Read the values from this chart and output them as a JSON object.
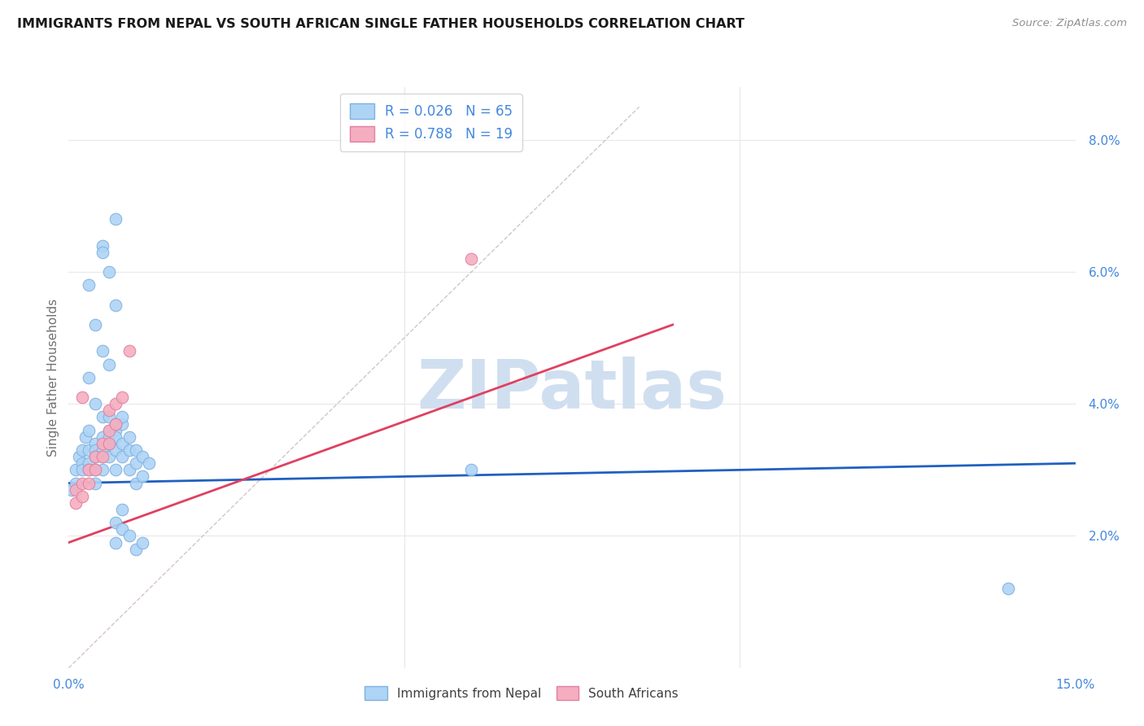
{
  "title": "IMMIGRANTS FROM NEPAL VS SOUTH AFRICAN SINGLE FATHER HOUSEHOLDS CORRELATION CHART",
  "source": "Source: ZipAtlas.com",
  "ylabel": "Single Father Households",
  "y_ticks": [
    2.0,
    4.0,
    6.0,
    8.0
  ],
  "x_min": 0.0,
  "x_max": 0.15,
  "y_min": 0.0,
  "y_max": 0.088,
  "nepal_points": [
    [
      0.0005,
      0.027
    ],
    [
      0.001,
      0.03
    ],
    [
      0.001,
      0.028
    ],
    [
      0.0015,
      0.032
    ],
    [
      0.002,
      0.031
    ],
    [
      0.002,
      0.033
    ],
    [
      0.0025,
      0.035
    ],
    [
      0.002,
      0.03
    ],
    [
      0.003,
      0.036
    ],
    [
      0.003,
      0.033
    ],
    [
      0.003,
      0.031
    ],
    [
      0.003,
      0.03
    ],
    [
      0.003,
      0.058
    ],
    [
      0.004,
      0.034
    ],
    [
      0.004,
      0.033
    ],
    [
      0.004,
      0.03
    ],
    [
      0.004,
      0.028
    ],
    [
      0.004,
      0.032
    ],
    [
      0.005,
      0.035
    ],
    [
      0.005,
      0.032
    ],
    [
      0.005,
      0.03
    ],
    [
      0.005,
      0.033
    ],
    [
      0.005,
      0.048
    ],
    [
      0.005,
      0.064
    ],
    [
      0.006,
      0.036
    ],
    [
      0.006,
      0.034
    ],
    [
      0.006,
      0.032
    ],
    [
      0.006,
      0.035
    ],
    [
      0.006,
      0.046
    ],
    [
      0.007,
      0.036
    ],
    [
      0.007,
      0.035
    ],
    [
      0.007,
      0.033
    ],
    [
      0.007,
      0.03
    ],
    [
      0.007,
      0.022
    ],
    [
      0.007,
      0.019
    ],
    [
      0.008,
      0.037
    ],
    [
      0.008,
      0.034
    ],
    [
      0.008,
      0.032
    ],
    [
      0.008,
      0.024
    ],
    [
      0.008,
      0.021
    ],
    [
      0.009,
      0.035
    ],
    [
      0.009,
      0.033
    ],
    [
      0.009,
      0.03
    ],
    [
      0.009,
      0.02
    ],
    [
      0.01,
      0.033
    ],
    [
      0.01,
      0.031
    ],
    [
      0.01,
      0.028
    ],
    [
      0.01,
      0.018
    ],
    [
      0.011,
      0.032
    ],
    [
      0.011,
      0.029
    ],
    [
      0.011,
      0.019
    ],
    [
      0.012,
      0.031
    ],
    [
      0.005,
      0.063
    ],
    [
      0.007,
      0.068
    ],
    [
      0.004,
      0.04
    ],
    [
      0.005,
      0.038
    ],
    [
      0.006,
      0.038
    ],
    [
      0.007,
      0.037
    ],
    [
      0.003,
      0.044
    ],
    [
      0.004,
      0.052
    ],
    [
      0.006,
      0.06
    ],
    [
      0.007,
      0.055
    ],
    [
      0.008,
      0.038
    ],
    [
      0.06,
      0.03
    ],
    [
      0.14,
      0.012
    ]
  ],
  "sa_points": [
    [
      0.001,
      0.027
    ],
    [
      0.001,
      0.025
    ],
    [
      0.002,
      0.028
    ],
    [
      0.002,
      0.026
    ],
    [
      0.003,
      0.03
    ],
    [
      0.003,
      0.028
    ],
    [
      0.004,
      0.032
    ],
    [
      0.004,
      0.03
    ],
    [
      0.005,
      0.034
    ],
    [
      0.005,
      0.032
    ],
    [
      0.006,
      0.036
    ],
    [
      0.006,
      0.034
    ],
    [
      0.006,
      0.039
    ],
    [
      0.007,
      0.037
    ],
    [
      0.007,
      0.04
    ],
    [
      0.008,
      0.041
    ],
    [
      0.009,
      0.048
    ],
    [
      0.002,
      0.041
    ],
    [
      0.06,
      0.062
    ]
  ],
  "nepal_line": {
    "x0": 0.0,
    "y0": 0.028,
    "x1": 0.15,
    "y1": 0.031
  },
  "sa_line": {
    "x0": 0.0,
    "y0": 0.019,
    "x1": 0.09,
    "y1": 0.052
  },
  "diag_line": {
    "x0": 0.0,
    "y0": 0.0,
    "x1": 0.085,
    "y1": 0.085
  },
  "nepal_color": "#aed4f5",
  "nepal_edge_color": "#80b0e0",
  "sa_color": "#f5aec0",
  "sa_edge_color": "#e080a0",
  "nepal_line_color": "#2060c0",
  "sa_line_color": "#e04060",
  "diag_line_color": "#c8b8b8",
  "background_color": "#ffffff",
  "grid_color": "#e8e8e8",
  "title_color": "#1a1a1a",
  "axis_label_color": "#4488dd",
  "watermark": "ZIPatlas",
  "watermark_color": "#d0dff0",
  "title_fontsize": 11.5,
  "source_fontsize": 9.5,
  "legend_label_1": "R = 0.026   N = 65",
  "legend_label_2": "R = 0.788   N = 19",
  "bottom_label_1": "Immigrants from Nepal",
  "bottom_label_2": "South Africans"
}
